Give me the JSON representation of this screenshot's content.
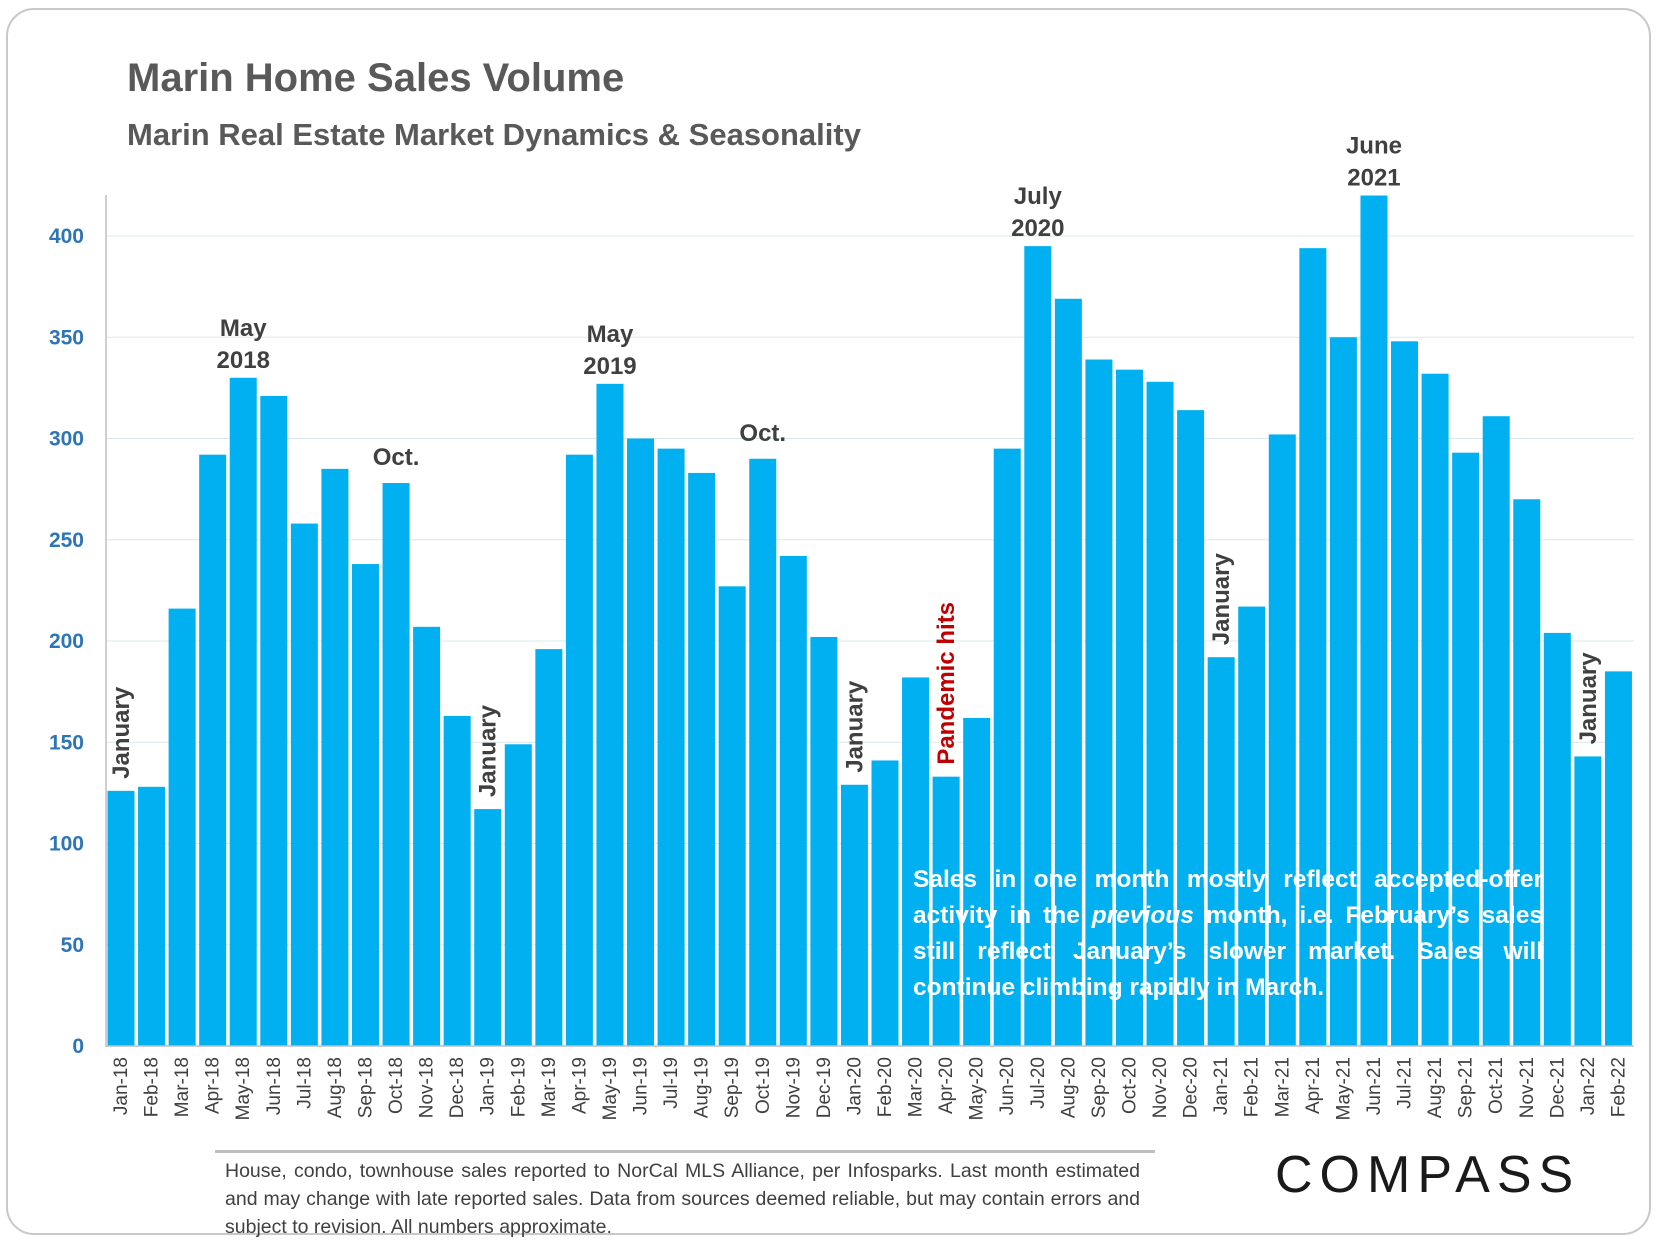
{
  "header": {
    "title": "Marin Home Sales Volume",
    "subtitle": "Marin Real Estate Market Dynamics & Seasonality"
  },
  "chart_data": {
    "type": "bar",
    "title": "Marin Home Sales Volume",
    "subtitle": "Marin Real Estate Market Dynamics & Seasonality",
    "categories": [
      "Jan-18",
      "Feb-18",
      "Mar-18",
      "Apr-18",
      "May-18",
      "Jun-18",
      "Jul-18",
      "Aug-18",
      "Sep-18",
      "Oct-18",
      "Nov-18",
      "Dec-18",
      "Jan-19",
      "Feb-19",
      "Mar-19",
      "Apr-19",
      "May-19",
      "Jun-19",
      "Jul-19",
      "Aug-19",
      "Sep-19",
      "Oct-19",
      "Nov-19",
      "Dec-19",
      "Jan-20",
      "Feb-20",
      "Mar-20",
      "Apr-20",
      "May-20",
      "Jun-20",
      "Jul-20",
      "Aug-20",
      "Sep-20",
      "Oct-20",
      "Nov-20",
      "Dec-20",
      "Jan-21",
      "Feb-21",
      "Mar-21",
      "Apr-21",
      "May-21",
      "Jun-21",
      "Jul-21",
      "Aug-21",
      "Sep-21",
      "Oct-21",
      "Nov-21",
      "Dec-21",
      "Jan-22",
      "Feb-22"
    ],
    "values": [
      126,
      128,
      216,
      292,
      330,
      321,
      258,
      285,
      238,
      278,
      207,
      163,
      117,
      149,
      196,
      292,
      327,
      300,
      295,
      283,
      227,
      290,
      242,
      202,
      129,
      141,
      182,
      133,
      162,
      295,
      395,
      369,
      339,
      334,
      328,
      314,
      192,
      217,
      302,
      394,
      350,
      420,
      348,
      332,
      293,
      311,
      270,
      204,
      143,
      185
    ],
    "ylim": [
      0,
      420
    ],
    "yticks": [
      0,
      50,
      100,
      150,
      200,
      250,
      300,
      350,
      400
    ],
    "grid": true,
    "bar_color": "#00b0f0",
    "annotations": [
      {
        "text": "January",
        "index": 0,
        "vertical": true,
        "color": "#404040"
      },
      {
        "text": "May",
        "text2": "2018",
        "index": 4,
        "vertical": false,
        "color": "#404040"
      },
      {
        "text": "Oct.",
        "index": 9,
        "vertical": false,
        "color": "#404040"
      },
      {
        "text": "January",
        "index": 12,
        "vertical": true,
        "color": "#404040"
      },
      {
        "text": "May",
        "text2": "2019",
        "index": 16,
        "vertical": false,
        "color": "#404040"
      },
      {
        "text": "Oct.",
        "index": 21,
        "vertical": false,
        "color": "#404040"
      },
      {
        "text": "January",
        "index": 24,
        "vertical": true,
        "color": "#404040"
      },
      {
        "text": "Pandemic hits",
        "index": 27,
        "vertical": true,
        "color": "#c00000"
      },
      {
        "text": "July",
        "text2": "2020",
        "index": 30,
        "vertical": false,
        "color": "#404040"
      },
      {
        "text": "January",
        "index": 36,
        "vertical": true,
        "color": "#404040"
      },
      {
        "text": "June",
        "text2": "2021",
        "index": 41,
        "vertical": false,
        "color": "#404040"
      },
      {
        "text": "January",
        "index": 48,
        "vertical": true,
        "color": "#404040"
      }
    ]
  },
  "note": {
    "part1": "Sales in one month mostly reflect accepted-offer activity in the ",
    "italic": "previous",
    "part2": " month, i.e. February’s sales still reflect January’s slower market. Sales will continue climbing rapidly in March."
  },
  "footer": {
    "text": "House, condo, townhouse sales reported to NorCal MLS Alliance, per Infosparks. Last month estimated and may change with late reported sales. Data from sources deemed reliable, but may contain errors and subject to revision. All numbers approximate."
  },
  "logo": {
    "text": "COMPASS"
  }
}
